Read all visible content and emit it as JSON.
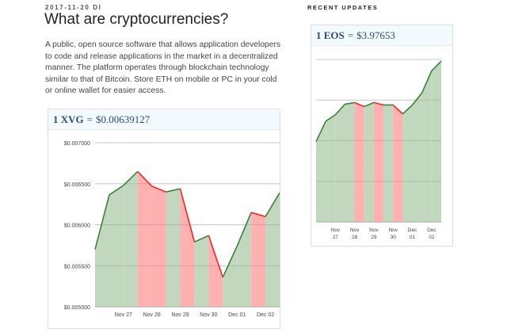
{
  "post": {
    "date": "2017-11-20 DI",
    "title": "What are cryptocurrencies?",
    "body": "A public, open source software that allows application developers to code and release applications in the market in a decentralized manner. The platform operates through blockchain technology similar to that of Bitcoin. Store ETH on mobile or PC in your cold or online wallet for easier access."
  },
  "sidebar": {
    "heading": "RECENT UPDATES"
  },
  "colors": {
    "up_line": "#2e7d32",
    "up_fill": "#c1d8bf",
    "down_line": "#ff1a1a",
    "down_fill": "#ffb1b1",
    "grid": "#e3e3e3",
    "header_bg": "#f3fafe"
  },
  "chart_data": [
    {
      "type": "area",
      "coin": "1 XVG",
      "equals": "=",
      "price": "$0.00639127",
      "ylim": [
        0.005,
        0.007
      ],
      "yticks": [
        "$0.007000",
        "$0.006500",
        "$0.006000",
        "$0.005500",
        "$0.005000"
      ],
      "ytick_values": [
        0.007,
        0.0065,
        0.006,
        0.0055,
        0.005
      ],
      "xtick_labels": [
        "Nov 27",
        "Nov 28",
        "Nov 29",
        "Nov 30",
        "Dec 01",
        "Dec 02"
      ],
      "xtick_index": [
        2,
        4,
        6,
        8,
        10,
        12
      ],
      "values": [
        0.0057,
        0.006365,
        0.00648,
        0.00665,
        0.00647,
        0.0064,
        0.00644,
        0.00579,
        0.00587,
        0.00536,
        0.00574,
        0.00615,
        0.0061,
        0.00639
      ]
    },
    {
      "type": "area",
      "coin": "1 EOS",
      "equals": "=",
      "price": "$3.97653",
      "ylim": [
        2.0,
        4.0
      ],
      "yticks": [],
      "ytick_values": [
        4.0,
        3.5,
        3.0,
        2.5,
        2.0
      ],
      "xtick_labels": [
        "Nov\n27",
        "Nov\n28",
        "Nov\n29",
        "Nov\n30",
        "Dec\n01",
        "Dec\n02"
      ],
      "xtick_index": [
        2,
        4,
        6,
        8,
        10,
        12
      ],
      "values": [
        2.99,
        3.24,
        3.32,
        3.45,
        3.47,
        3.42,
        3.47,
        3.44,
        3.44,
        3.33,
        3.44,
        3.59,
        3.86,
        3.98
      ]
    }
  ]
}
